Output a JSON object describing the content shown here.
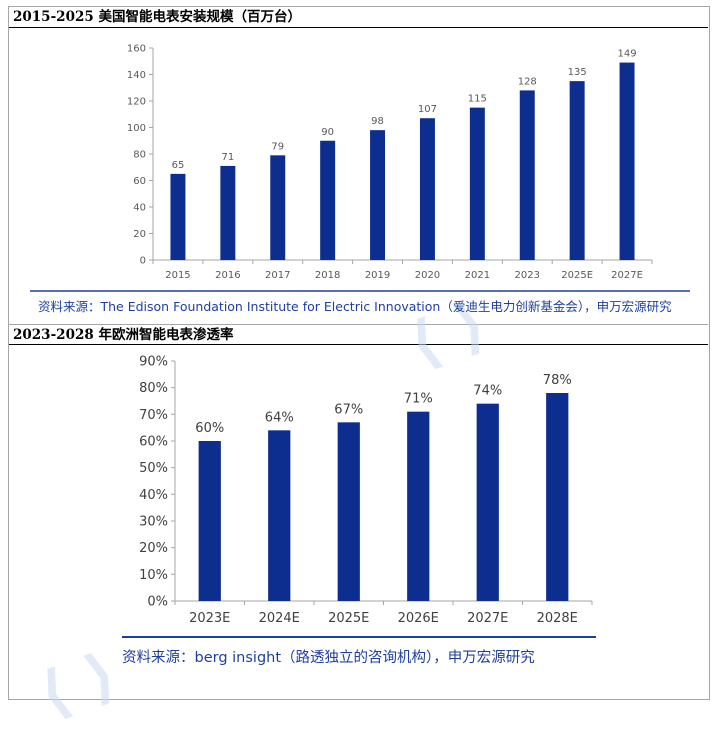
{
  "chart_data": [
    {
      "type": "bar",
      "title": "2015-2025 美国智能电表安装规模（百万台）",
      "categories": [
        "2015",
        "2016",
        "2017",
        "2018",
        "2019",
        "2020",
        "2021",
        "2023",
        "2025E",
        "2027E"
      ],
      "values": [
        65,
        71,
        79,
        90,
        98,
        107,
        115,
        128,
        135,
        149
      ],
      "data_labels": [
        "65",
        "71",
        "79",
        "90",
        "98",
        "107",
        "115",
        "128",
        "135",
        "149"
      ],
      "ylim": [
        0,
        160
      ],
      "yticks": [
        "0",
        "20",
        "40",
        "60",
        "80",
        "100",
        "120",
        "140",
        "160"
      ],
      "grid": false,
      "bar_color": "#0d2e8f",
      "source": "资料来源：The Edison Foundation Institute for Electric Innovation（爱迪生电力创新基金会），申万宏源研究"
    },
    {
      "type": "bar",
      "title": "2023-2028 年欧洲智能电表渗透率",
      "categories": [
        "2023E",
        "2024E",
        "2025E",
        "2026E",
        "2027E",
        "2028E"
      ],
      "values": [
        60,
        64,
        67,
        71,
        74,
        78
      ],
      "data_labels": [
        "60%",
        "64%",
        "67%",
        "71%",
        "74%",
        "78%"
      ],
      "ylim": [
        0,
        90
      ],
      "yticks": [
        "0%",
        "10%",
        "20%",
        "30%",
        "40%",
        "50%",
        "60%",
        "70%",
        "80%",
        "90%"
      ],
      "grid": false,
      "bar_color": "#0d2e8f",
      "source": "资料来源：berg insight（路透独立的咨询机构），申万宏源研究"
    }
  ],
  "colors": {
    "bar": "#0d2e8f",
    "source_text": "#1f3fa0",
    "axis": "#a6a6a6"
  }
}
